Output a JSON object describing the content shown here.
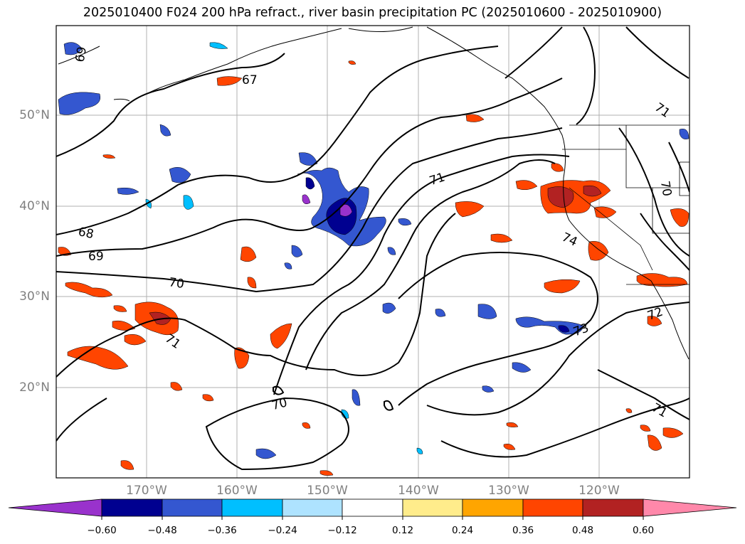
{
  "title": "2025010400 F024 200 hPa refract., river basin precipitation PC (2025010600 - 2025010900)",
  "map": {
    "lat_labels": [
      "50°N",
      "40°N",
      "30°N",
      "20°N"
    ],
    "lon_labels": [
      "170°W",
      "160°W",
      "150°W",
      "140°W",
      "130°W",
      "120°W"
    ],
    "contour_labels": [
      "69",
      "67",
      "71",
      "71",
      "68",
      "69",
      "70",
      "71",
      "74",
      "72",
      "73",
      "70",
      "71",
      "70"
    ],
    "colors": {
      "neg_extend": "#9932cc",
      "neg_048": "#000090",
      "neg_036": "#3457d0",
      "neg_024": "#00bfff",
      "neg_012": "#aee3ff",
      "zero": "#ffffff",
      "pos_012": "#ffec8b",
      "pos_024": "#ffa500",
      "pos_036": "#ff4500",
      "pos_048": "#b22222",
      "pos_extend": "#ff88aa"
    }
  },
  "colorbar": {
    "ticks": [
      "−0.60",
      "−0.48",
      "−0.36",
      "−0.24",
      "−0.12",
      "0.12",
      "0.24",
      "0.36",
      "0.48",
      "0.60"
    ]
  }
}
